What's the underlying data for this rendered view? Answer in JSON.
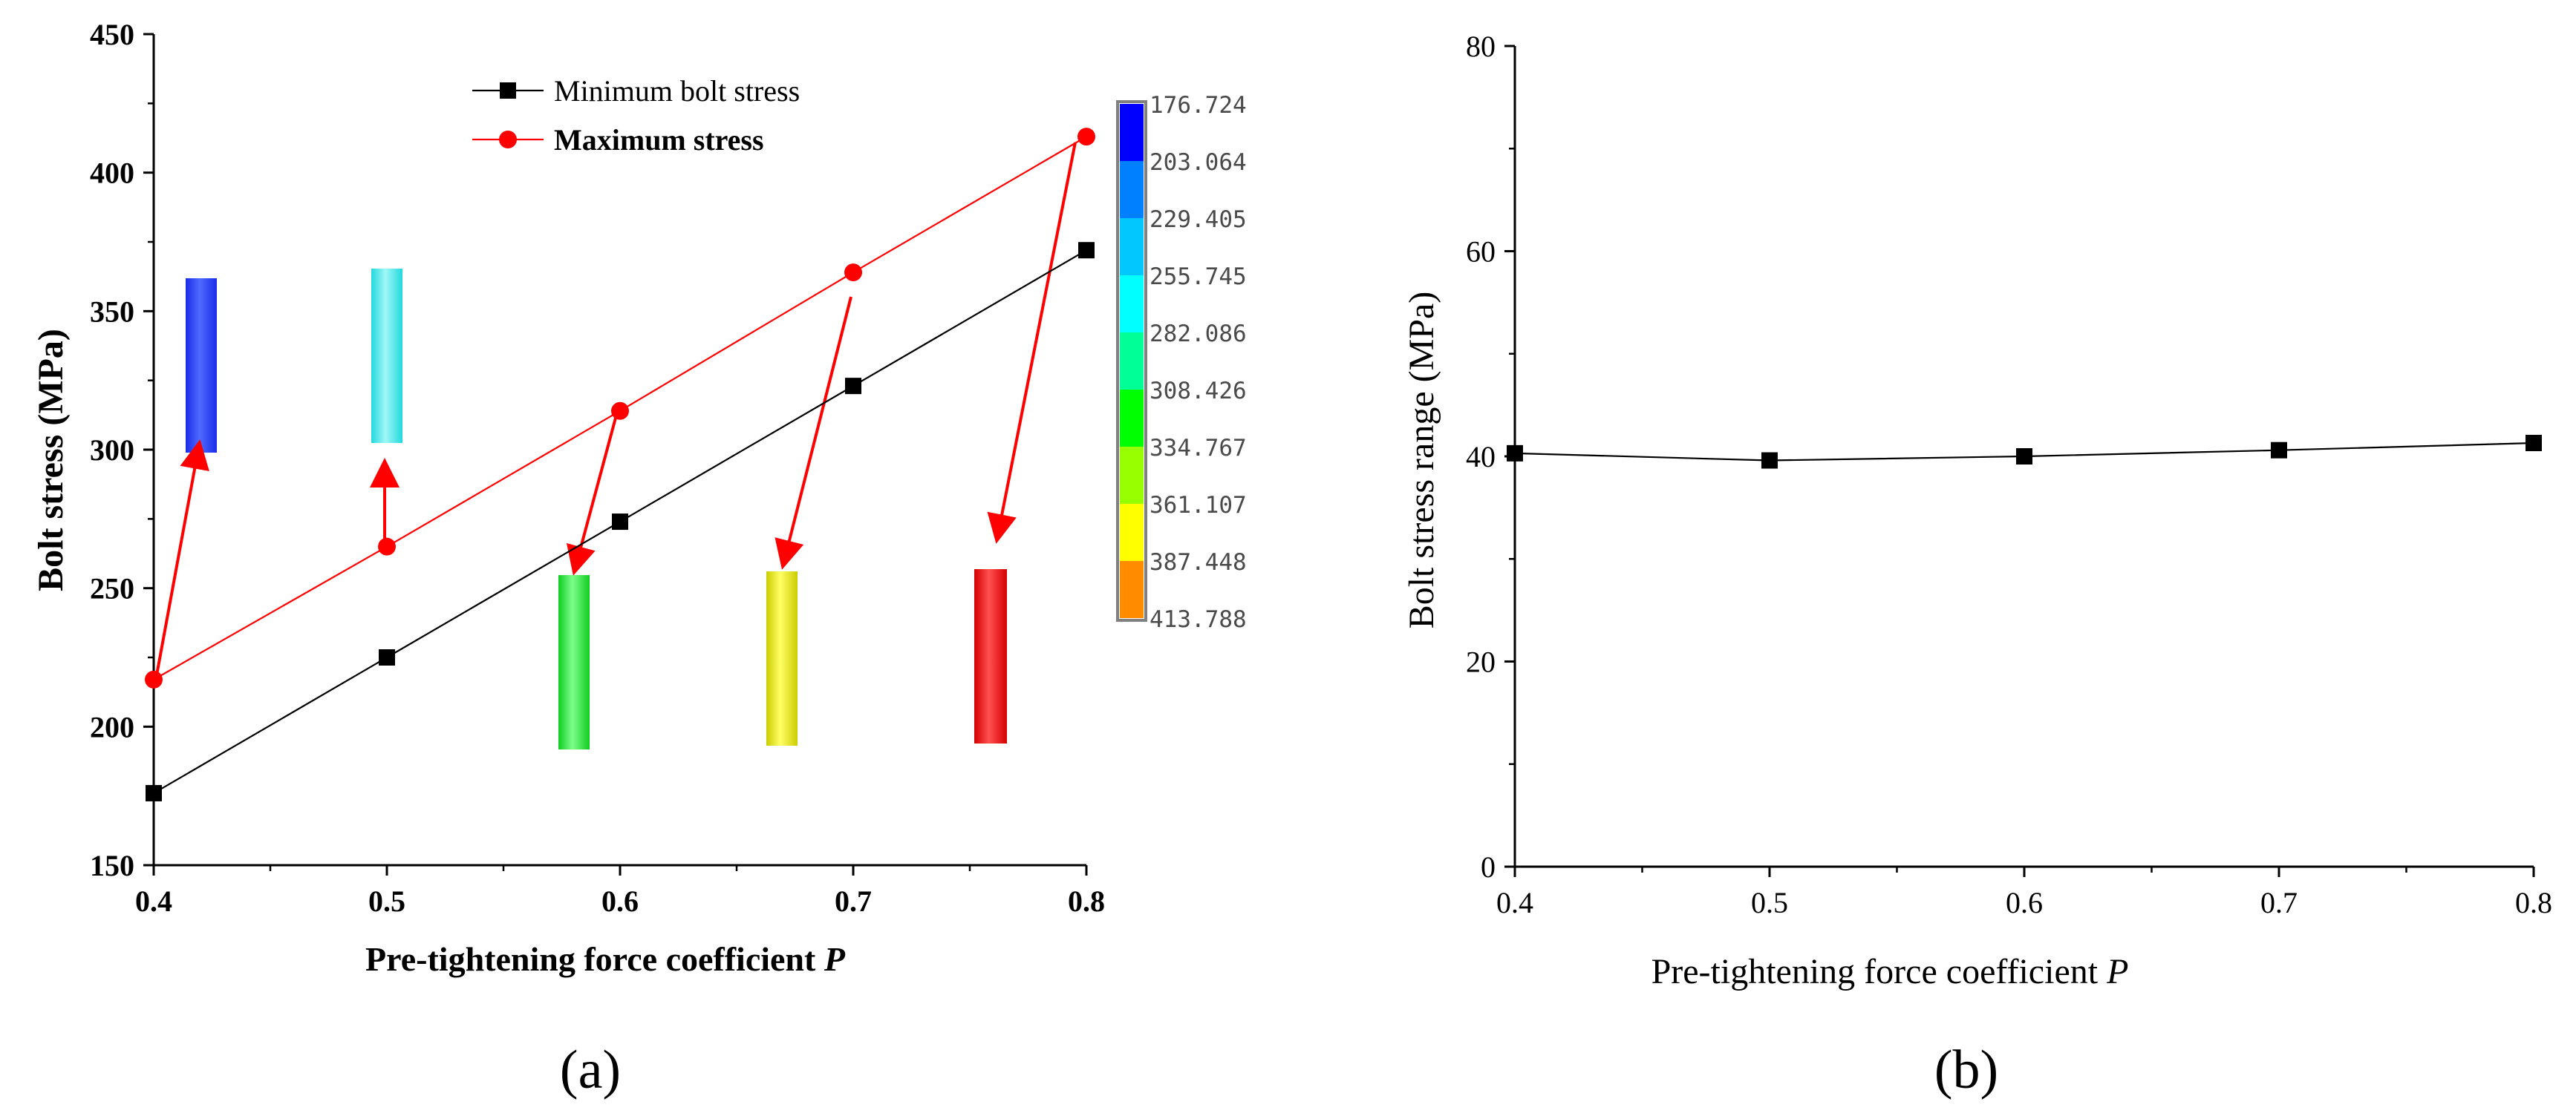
{
  "chart_data": [
    {
      "id": "a",
      "panel_label": "(a)",
      "type": "line",
      "xlabel": "Pre-tightening force coefficient ",
      "xlabel_italic": "P",
      "ylabel": "Bolt stress (MPa)",
      "xlim": [
        0.4,
        0.8
      ],
      "ylim": [
        150,
        450
      ],
      "xticks": [
        "0.4",
        "0.5",
        "0.6",
        "0.7",
        "0.8"
      ],
      "yticks": [
        "150",
        "200",
        "250",
        "300",
        "350",
        "400",
        "450"
      ],
      "legend_position": "top-center",
      "x": [
        0.4,
        0.5,
        0.6,
        0.7,
        0.8
      ],
      "series": [
        {
          "name": "Minimum bolt stress",
          "color": "#000000",
          "marker": "square",
          "values": [
            176,
            225,
            274,
            323,
            372
          ]
        },
        {
          "name": "Maximum stress",
          "color": "#ff0000",
          "marker": "circle",
          "values": [
            217,
            265,
            314,
            364,
            413
          ]
        }
      ],
      "contour_legend": {
        "values": [
          "176.724",
          "203.064",
          "229.405",
          "255.745",
          "282.086",
          "308.426",
          "334.767",
          "361.107",
          "387.448",
          "413.788"
        ],
        "colors": [
          "#0000ff",
          "#007fff",
          "#00c8ff",
          "#00ffff",
          "#00ff96",
          "#00ff00",
          "#96ff00",
          "#ffff00",
          "#ff8c00",
          "#ff0000"
        ]
      },
      "bolt_insets": [
        {
          "at_x": 0.4,
          "color": "#1a2be8",
          "highlight": "#4f6bff"
        },
        {
          "at_x": 0.5,
          "color": "#22d9dd",
          "highlight": "#9ff7f7"
        },
        {
          "at_x": 0.6,
          "color": "#10cc22",
          "highlight": "#7dff8a"
        },
        {
          "at_x": 0.7,
          "color": "#cccc00",
          "highlight": "#ffff66"
        },
        {
          "at_x": 0.8,
          "color": "#d40000",
          "highlight": "#ff5050"
        }
      ]
    },
    {
      "id": "b",
      "panel_label": "(b)",
      "type": "line",
      "xlabel": "Pre-tightening force coefficient ",
      "xlabel_italic": "P",
      "ylabel": "Bolt stress range (MPa)",
      "xlim": [
        0.4,
        0.8
      ],
      "ylim": [
        0,
        80
      ],
      "xticks": [
        "0.4",
        "0.5",
        "0.6",
        "0.7",
        "0.8"
      ],
      "yticks": [
        "0",
        "20",
        "40",
        "60",
        "80"
      ],
      "x": [
        0.4,
        0.5,
        0.6,
        0.7,
        0.8
      ],
      "series": [
        {
          "name": "Bolt stress range",
          "color": "#000000",
          "marker": "square",
          "values": [
            40.3,
            39.6,
            40.0,
            40.6,
            41.3
          ]
        }
      ]
    }
  ]
}
